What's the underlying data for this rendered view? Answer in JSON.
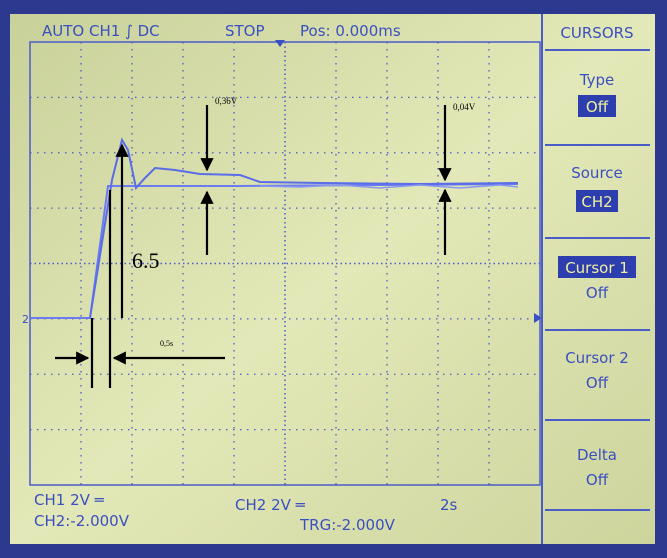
{
  "header": {
    "mode": "AUTO CH1 ∫ DC",
    "status": "STOP",
    "position": "Pos: 0.000ms"
  },
  "menu": {
    "title": "CURSORS",
    "items": [
      {
        "label": "Type",
        "value": "Off"
      },
      {
        "label": "Source",
        "value": "CH2"
      },
      {
        "label": "Cursor 1",
        "value": "Off"
      },
      {
        "label": "Cursor 2",
        "value": "Off"
      },
      {
        "label": "Delta",
        "value": "Off"
      }
    ]
  },
  "footer": {
    "ch1_scale": "CH1 2V ═",
    "ch1_offset": "CH2:-2.000V",
    "ch2_scale": "CH2 2V ═",
    "timebase": "2s",
    "trigger": "TRG:-2.000V"
  },
  "annotations": {
    "overshoot": "0,36V",
    "ripple": "0,04V",
    "time": "0,5s",
    "rise": "6.5"
  }
}
